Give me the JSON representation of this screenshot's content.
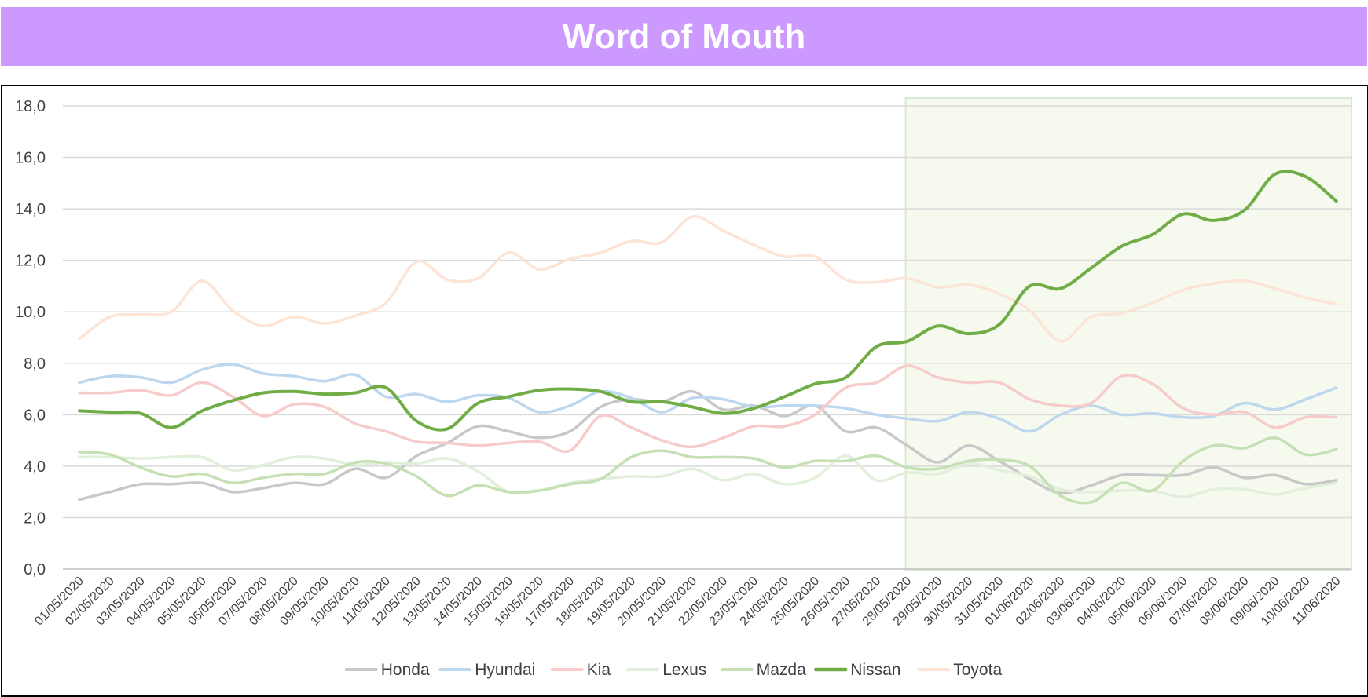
{
  "title": "Word of Mouth",
  "chart_data": {
    "type": "line",
    "title": "Word of Mouth",
    "xlabel": "",
    "ylabel": "",
    "ylim": [
      0,
      18
    ],
    "yticks": [
      "0,0",
      "2,0",
      "4,0",
      "6,0",
      "8,0",
      "10,0",
      "12,0",
      "14,0",
      "16,0",
      "18,0"
    ],
    "grid": true,
    "legend_position": "bottom",
    "highlight": {
      "from": "28/05/2020",
      "to": "11/06/2020",
      "color": "#f5f9ee",
      "border": "#d9ead3"
    },
    "categories": [
      "01/05/2020",
      "02/05/2020",
      "03/05/2020",
      "04/05/2020",
      "05/05/2020",
      "06/05/2020",
      "07/05/2020",
      "08/05/2020",
      "09/05/2020",
      "10/05/2020",
      "11/05/2020",
      "12/05/2020",
      "13/05/2020",
      "14/05/2020",
      "15/05/2020",
      "16/05/2020",
      "17/05/2020",
      "18/05/2020",
      "19/05/2020",
      "20/05/2020",
      "21/05/2020",
      "22/05/2020",
      "23/05/2020",
      "24/05/2020",
      "25/05/2020",
      "26/05/2020",
      "27/05/2020",
      "28/05/2020",
      "29/05/2020",
      "30/05/2020",
      "31/05/2020",
      "01/06/2020",
      "02/06/2020",
      "03/06/2020",
      "04/06/2020",
      "05/06/2020",
      "06/06/2020",
      "07/06/2020",
      "08/06/2020",
      "09/06/2020",
      "10/06/2020",
      "11/06/2020"
    ],
    "series": [
      {
        "name": "Honda",
        "color": "#c8c8c8",
        "width": 3.5,
        "values": [
          2.7,
          3.0,
          3.3,
          3.3,
          3.35,
          3.0,
          3.15,
          3.35,
          3.3,
          3.9,
          3.55,
          4.4,
          4.9,
          5.55,
          5.35,
          5.1,
          5.35,
          6.3,
          6.6,
          6.5,
          6.9,
          6.2,
          6.35,
          5.95,
          6.35,
          5.35,
          5.5,
          4.8,
          4.15,
          4.8,
          4.2,
          3.5,
          2.95,
          3.25,
          3.65,
          3.65,
          3.65,
          3.95,
          3.55,
          3.65,
          3.3,
          3.45
        ]
      },
      {
        "name": "Hyundai",
        "color": "#bdd7ee",
        "width": 3.5,
        "values": [
          7.25,
          7.5,
          7.45,
          7.25,
          7.75,
          7.95,
          7.6,
          7.5,
          7.3,
          7.55,
          6.7,
          6.8,
          6.5,
          6.75,
          6.65,
          6.1,
          6.35,
          6.9,
          6.65,
          6.1,
          6.65,
          6.6,
          6.3,
          6.35,
          6.35,
          6.25,
          6.0,
          5.85,
          5.75,
          6.1,
          5.85,
          5.35,
          6.0,
          6.35,
          6.0,
          6.05,
          5.9,
          5.95,
          6.45,
          6.2,
          6.6,
          7.05
        ]
      },
      {
        "name": "Kia",
        "color": "#f8cbcb",
        "width": 3.5,
        "values": [
          6.85,
          6.85,
          6.95,
          6.75,
          7.25,
          6.7,
          5.95,
          6.4,
          6.3,
          5.65,
          5.35,
          4.95,
          4.9,
          4.8,
          4.9,
          4.95,
          4.6,
          5.95,
          5.5,
          5.0,
          4.75,
          5.1,
          5.55,
          5.55,
          6.0,
          7.05,
          7.25,
          7.9,
          7.45,
          7.25,
          7.25,
          6.6,
          6.35,
          6.45,
          7.5,
          7.2,
          6.25,
          6.0,
          6.1,
          5.5,
          5.9,
          5.9
        ]
      },
      {
        "name": "Lexus",
        "color": "#e2efda",
        "width": 3.5,
        "values": [
          4.35,
          4.35,
          4.3,
          4.35,
          4.35,
          3.85,
          4.05,
          4.35,
          4.3,
          4.05,
          4.15,
          4.1,
          4.3,
          3.8,
          3.0,
          3.05,
          3.35,
          3.5,
          3.6,
          3.6,
          3.9,
          3.45,
          3.7,
          3.3,
          3.55,
          4.4,
          3.45,
          3.75,
          3.7,
          4.1,
          3.85,
          3.6,
          3.1,
          3.0,
          3.05,
          3.05,
          2.8,
          3.1,
          3.1,
          2.9,
          3.15,
          3.35
        ]
      },
      {
        "name": "Mazda",
        "color": "#c5e0b4",
        "width": 3.5,
        "values": [
          4.55,
          4.45,
          3.95,
          3.6,
          3.7,
          3.35,
          3.55,
          3.7,
          3.7,
          4.15,
          4.1,
          3.6,
          2.85,
          3.25,
          3.0,
          3.05,
          3.3,
          3.5,
          4.35,
          4.6,
          4.35,
          4.35,
          4.3,
          3.95,
          4.2,
          4.2,
          4.4,
          3.95,
          3.9,
          4.2,
          4.25,
          4.0,
          2.85,
          2.6,
          3.35,
          3.05,
          4.2,
          4.8,
          4.7,
          5.1,
          4.45,
          4.65
        ]
      },
      {
        "name": "Nissan",
        "color": "#70ad47",
        "width": 4,
        "values": [
          6.15,
          6.1,
          6.05,
          5.5,
          6.15,
          6.55,
          6.85,
          6.9,
          6.8,
          6.85,
          7.05,
          5.75,
          5.45,
          6.45,
          6.7,
          6.95,
          7.0,
          6.9,
          6.5,
          6.5,
          6.3,
          6.05,
          6.25,
          6.7,
          7.2,
          7.45,
          8.65,
          8.85,
          9.45,
          9.15,
          9.5,
          11.0,
          10.9,
          11.7,
          12.55,
          13.0,
          13.8,
          13.55,
          13.95,
          15.35,
          15.25,
          14.3
        ]
      },
      {
        "name": "Toyota",
        "color": "#fce4d6",
        "width": 3.5,
        "values": [
          8.95,
          9.8,
          9.9,
          10.0,
          11.2,
          10.05,
          9.45,
          9.8,
          9.55,
          9.85,
          10.35,
          11.95,
          11.25,
          11.3,
          12.3,
          11.65,
          12.05,
          12.3,
          12.75,
          12.7,
          13.7,
          13.15,
          12.6,
          12.15,
          12.15,
          11.25,
          11.15,
          11.3,
          10.95,
          11.05,
          10.7,
          10.05,
          8.85,
          9.8,
          9.95,
          10.35,
          10.85,
          11.1,
          11.2,
          10.9,
          10.55,
          10.3
        ]
      }
    ]
  }
}
